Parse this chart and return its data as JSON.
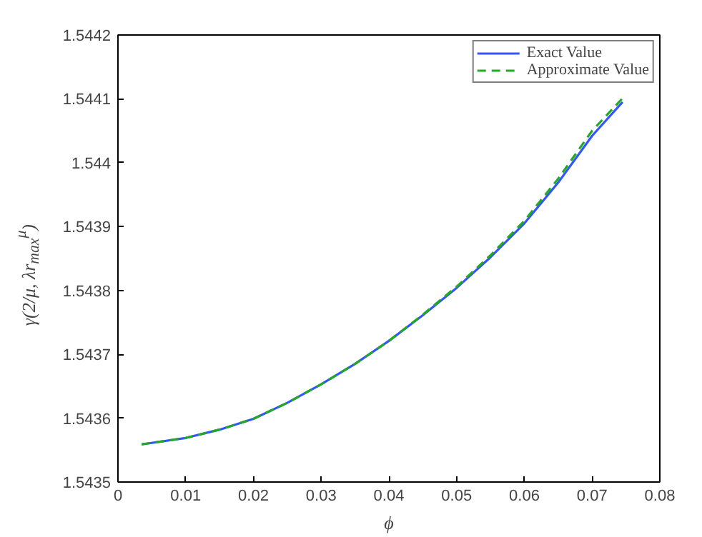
{
  "chart_data": {
    "type": "line",
    "xlabel": "ϕ",
    "ylabel": "γ(2/μ, λr$_{max}$$^{μ}$)",
    "xlim": [
      0,
      0.08
    ],
    "ylim": [
      1.5435,
      1.5442
    ],
    "xticks": [
      0,
      0.01,
      0.02,
      0.03,
      0.04,
      0.05,
      0.06,
      0.07,
      0.08
    ],
    "yticks": [
      1.5435,
      1.5436,
      1.5437,
      1.5438,
      1.5439,
      1.544,
      1.5441,
      1.5442
    ],
    "grid": false,
    "legend": "top right",
    "series": [
      {
        "name": "Exact Value",
        "color": "#3355ff",
        "line_style": "solid",
        "x": [
          0.0035,
          0.01,
          0.015,
          0.02,
          0.025,
          0.03,
          0.035,
          0.04,
          0.045,
          0.05,
          0.055,
          0.06,
          0.065,
          0.07,
          0.0745
        ],
        "values": [
          1.543559,
          1.543569,
          1.543582,
          1.543599,
          1.543624,
          1.543653,
          1.543685,
          1.543721,
          1.543761,
          1.543804,
          1.543852,
          1.543905,
          1.543969,
          1.544042,
          1.544095
        ]
      },
      {
        "name": "Approximate Value",
        "color": "#22aa22",
        "line_style": "dashed",
        "x": [
          0.0035,
          0.01,
          0.015,
          0.02,
          0.025,
          0.03,
          0.035,
          0.04,
          0.045,
          0.05,
          0.055,
          0.06,
          0.065,
          0.07,
          0.0745
        ],
        "values": [
          1.543559,
          1.543569,
          1.543582,
          1.543599,
          1.543624,
          1.543653,
          1.543685,
          1.543721,
          1.543762,
          1.543806,
          1.543855,
          1.543909,
          1.543975,
          1.54405,
          1.544101
        ]
      }
    ]
  }
}
